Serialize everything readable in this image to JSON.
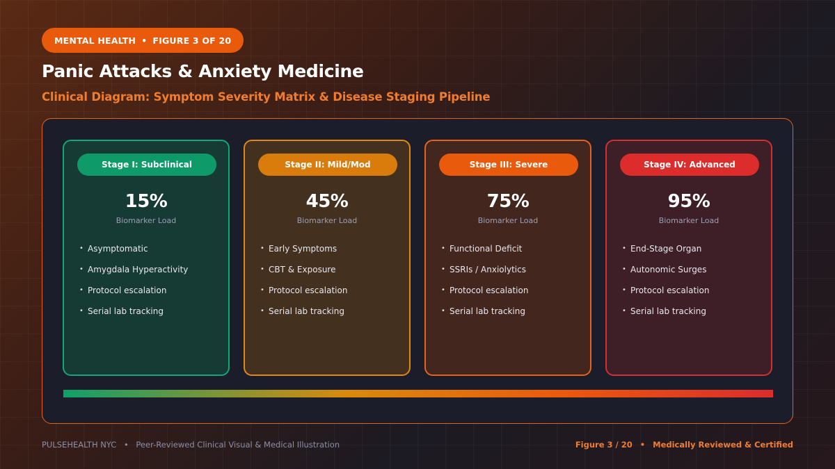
{
  "header": {
    "category": "MENTAL HEALTH",
    "figure_tag": "FIGURE 3 OF 20",
    "title": "Panic Attacks & Anxiety Medicine",
    "subtitle": "Clinical Diagram: Symptom Severity Matrix & Disease Staging Pipeline"
  },
  "stages": [
    {
      "badge": "Stage I: Subclinical",
      "percent": "15%",
      "metric_label": "Biomarker Load",
      "items": [
        "Asymptomatic",
        "Amygdala Hyperactivity",
        "Protocol escalation",
        "Serial lab tracking"
      ],
      "accent": "#0f9a6a",
      "border": "#12a877",
      "bg": "#163a34"
    },
    {
      "badge": "Stage II: Mild/Mod",
      "percent": "45%",
      "metric_label": "Biomarker Load",
      "items": [
        "Early Symptoms",
        "CBT & Exposure",
        "Protocol escalation",
        "Serial lab tracking"
      ],
      "accent": "#d97c0c",
      "border": "#e08a14",
      "bg": "#43301f"
    },
    {
      "badge": "Stage III: Severe",
      "percent": "75%",
      "metric_label": "Biomarker Load",
      "items": [
        "Functional Deficit",
        "SSRIs / Anxiolytics",
        "Protocol escalation",
        "Serial lab tracking"
      ],
      "accent": "#ea5a0c",
      "border": "#e8631a",
      "bg": "#43271f"
    },
    {
      "badge": "Stage IV: Advanced",
      "percent": "95%",
      "metric_label": "Biomarker Load",
      "items": [
        "End-Stage Organ",
        "Autonomic Surges",
        "Protocol escalation",
        "Serial lab tracking"
      ],
      "accent": "#dc2c2c",
      "border": "#d4302e",
      "bg": "#3e1e27"
    }
  ],
  "footer": {
    "brand": "PULSEHEALTH NYC",
    "left_text": "Peer-Reviewed Clinical Visual & Medical Illustration",
    "figure_count": "Figure 3 / 20",
    "right_text": "Medically Reviewed & Certified"
  }
}
